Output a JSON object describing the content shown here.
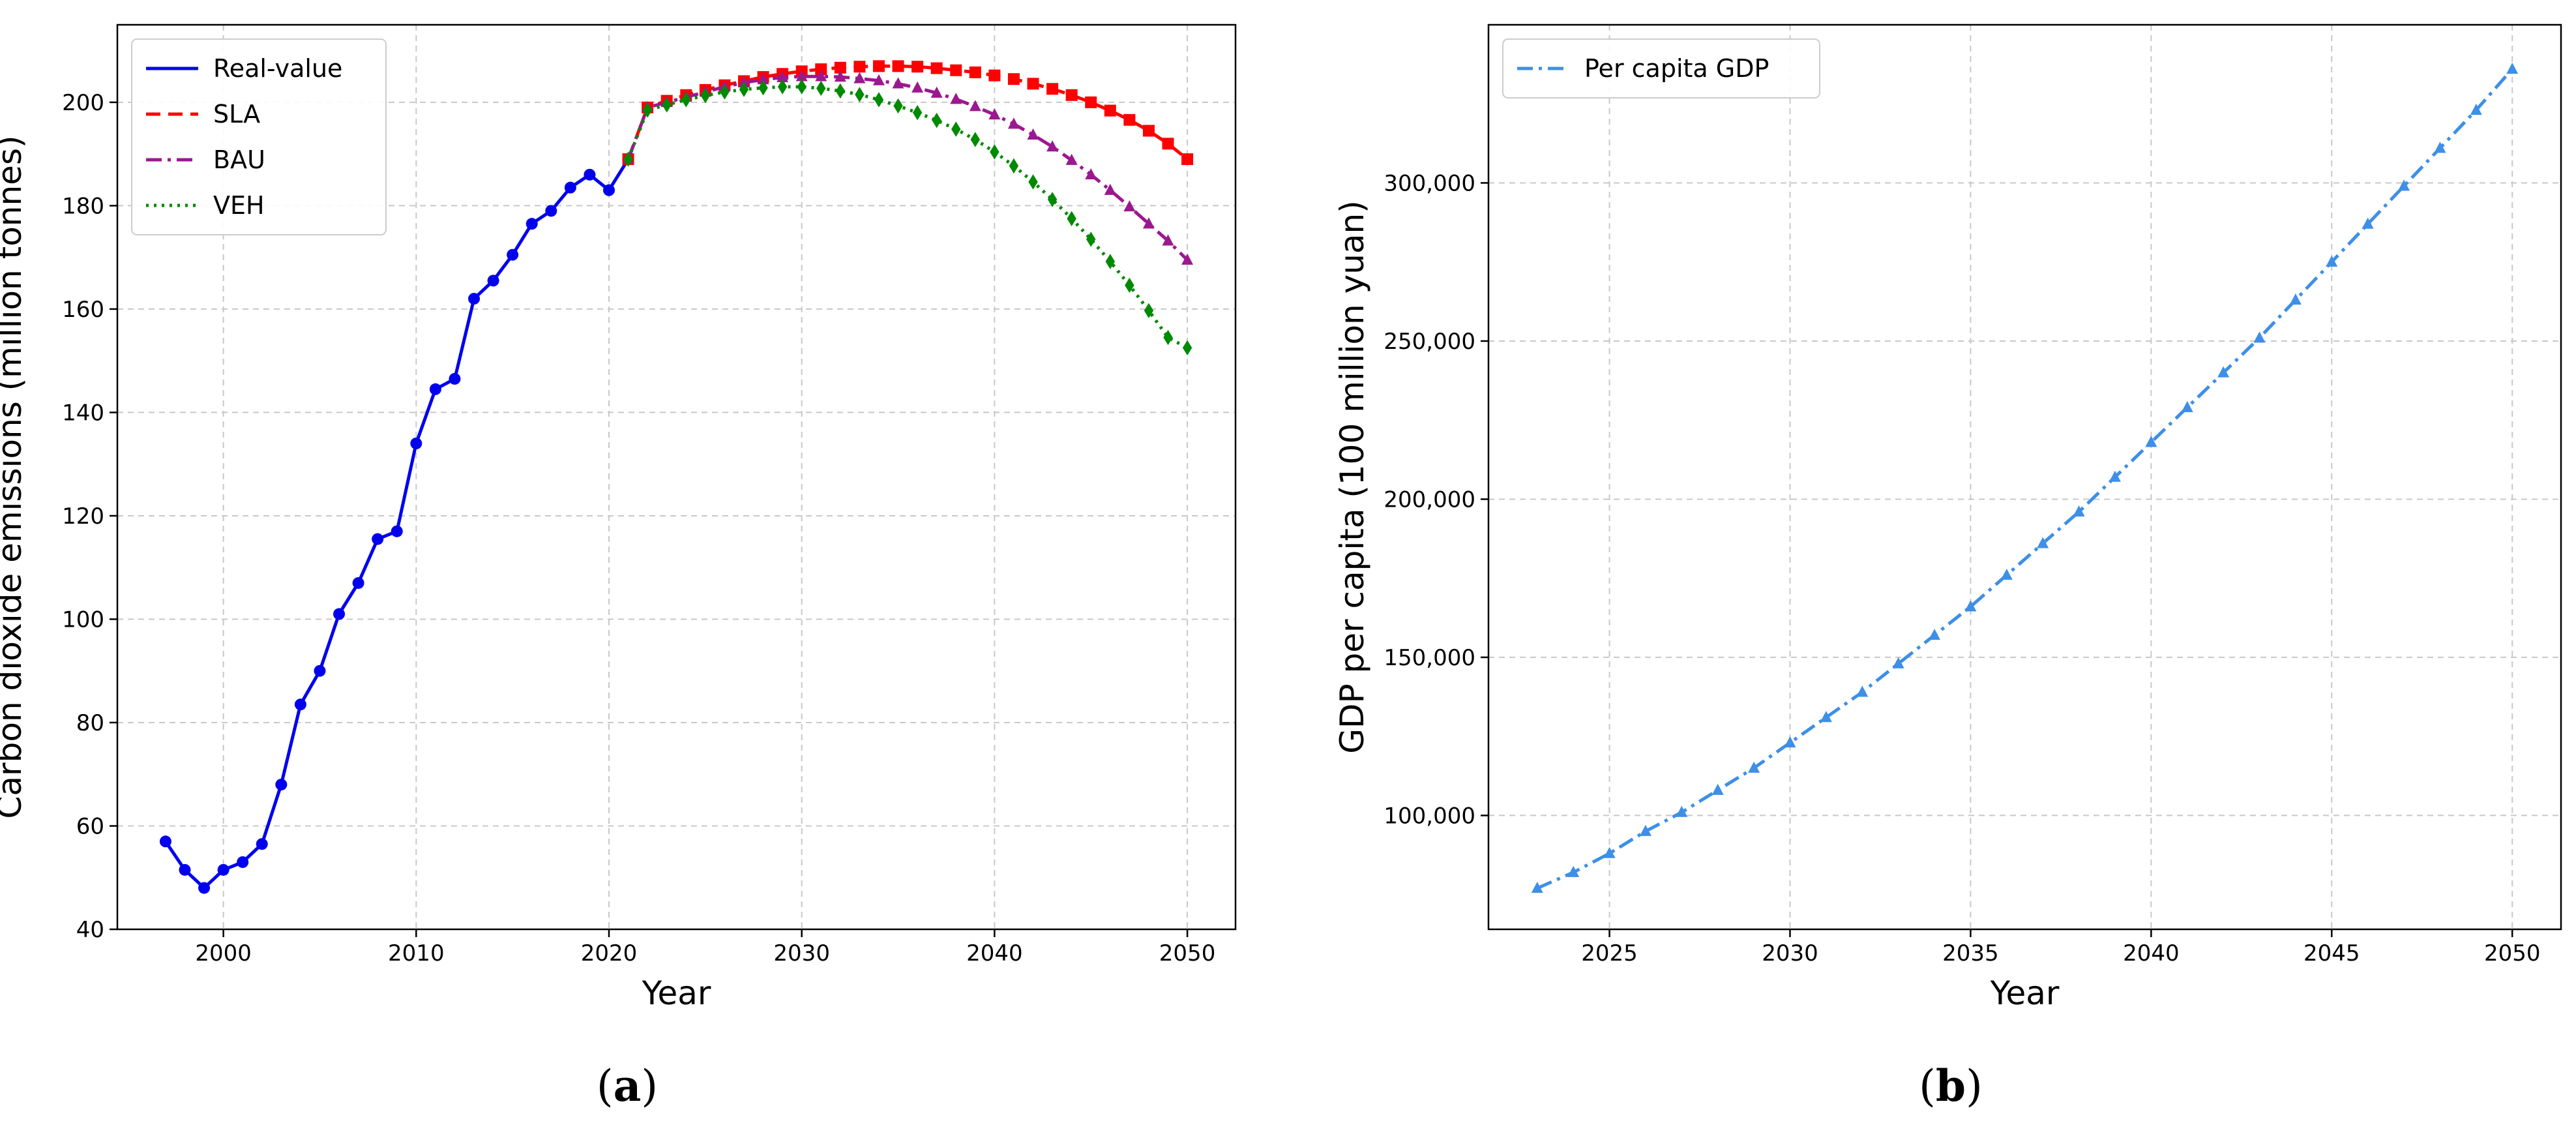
{
  "panels": [
    {
      "label_open": "(",
      "label_letter": "a",
      "label_close": ")"
    },
    {
      "label_open": "(",
      "label_letter": "b",
      "label_close": ")"
    }
  ],
  "chart_data": [
    {
      "type": "line",
      "xlabel": "Year",
      "ylabel": "Carbon dioxide emissions (million tonnes)",
      "xlim": [
        1994.5,
        2052.5
      ],
      "ylim": [
        40,
        215
      ],
      "xticks": [
        2000,
        2010,
        2020,
        2030,
        2040,
        2050
      ],
      "yticks": [
        40,
        60,
        80,
        100,
        120,
        140,
        160,
        180,
        200
      ],
      "grid": true,
      "legend_position": "top-left",
      "series": [
        {
          "name": "Real-value",
          "color": "#0000ee",
          "style": "solid",
          "marker": "circle",
          "x": [
            1997,
            1998,
            1999,
            2000,
            2001,
            2002,
            2003,
            2004,
            2005,
            2006,
            2007,
            2008,
            2009,
            2010,
            2011,
            2012,
            2013,
            2014,
            2015,
            2016,
            2017,
            2018,
            2019,
            2020,
            2021
          ],
          "values": [
            57,
            51.5,
            48,
            51.5,
            53,
            56.5,
            68,
            83.5,
            90,
            101,
            107,
            115.5,
            117,
            134,
            144.5,
            146.5,
            162,
            165.5,
            170.5,
            176.5,
            179,
            183.5,
            186,
            183,
            189
          ]
        },
        {
          "name": "SLA",
          "color": "#ff0000",
          "style": "dashed",
          "marker": "square",
          "x": [
            2021,
            2022,
            2023,
            2024,
            2025,
            2026,
            2027,
            2028,
            2029,
            2030,
            2031,
            2032,
            2033,
            2034,
            2035,
            2036,
            2037,
            2038,
            2039,
            2040,
            2041,
            2042,
            2043,
            2044,
            2045,
            2046,
            2047,
            2048,
            2049,
            2050
          ],
          "values": [
            189,
            199,
            200.3,
            201.4,
            202.4,
            203.3,
            204.1,
            204.9,
            205.5,
            206,
            206.4,
            206.7,
            206.9,
            207,
            207,
            206.9,
            206.6,
            206.2,
            205.8,
            205.2,
            204.5,
            203.6,
            202.6,
            201.4,
            200,
            198.4,
            196.6,
            194.5,
            192,
            189
          ]
        },
        {
          "name": "BAU",
          "color": "#9b1890",
          "style": "dashdot",
          "marker": "triangle",
          "x": [
            2021,
            2022,
            2023,
            2024,
            2025,
            2026,
            2027,
            2028,
            2029,
            2030,
            2031,
            2032,
            2033,
            2034,
            2035,
            2036,
            2037,
            2038,
            2039,
            2040,
            2041,
            2042,
            2043,
            2044,
            2045,
            2046,
            2047,
            2048,
            2049,
            2050
          ],
          "values": [
            189,
            199,
            200,
            201,
            202,
            203,
            203.8,
            204.4,
            204.8,
            205,
            205,
            204.9,
            204.6,
            204.2,
            203.6,
            202.8,
            201.8,
            200.6,
            199.2,
            197.6,
            195.8,
            193.7,
            191.4,
            188.8,
            186,
            183,
            179.8,
            176.5,
            173.2,
            169.5
          ]
        },
        {
          "name": "VEH",
          "color": "#008a00",
          "style": "dotted",
          "marker": "diamond",
          "x": [
            2021,
            2022,
            2023,
            2024,
            2025,
            2026,
            2027,
            2028,
            2029,
            2030,
            2031,
            2032,
            2033,
            2034,
            2035,
            2036,
            2037,
            2038,
            2039,
            2040,
            2041,
            2042,
            2043,
            2044,
            2045,
            2046,
            2047,
            2048,
            2049,
            2050
          ],
          "values": [
            189,
            198.5,
            199.5,
            200.5,
            201.3,
            202,
            202.5,
            202.8,
            203,
            203,
            202.7,
            202.2,
            201.5,
            200.5,
            199.3,
            198,
            196.5,
            194.8,
            192.8,
            190.4,
            187.7,
            184.6,
            181.2,
            177.5,
            173.5,
            169.2,
            164.6,
            159.7,
            154.5,
            152.5
          ]
        }
      ]
    },
    {
      "type": "line",
      "xlabel": "Year",
      "ylabel": "GDP per capita (100 million yuan)",
      "xlim": [
        2021.65,
        2051.35
      ],
      "ylim": [
        64000,
        350000
      ],
      "xticks": [
        2025,
        2030,
        2035,
        2040,
        2045,
        2050
      ],
      "yticks": [
        100000,
        150000,
        200000,
        250000,
        300000
      ],
      "ytick_labels": [
        "100,000",
        "150,000",
        "200,000",
        "250,000",
        "300,000"
      ],
      "grid": true,
      "legend_position": "top-left",
      "series": [
        {
          "name": "Per capita GDP",
          "color": "#3d8fe8",
          "style": "dashdot",
          "marker": "triangle",
          "x": [
            2023,
            2024,
            2025,
            2026,
            2027,
            2028,
            2029,
            2030,
            2031,
            2032,
            2033,
            2034,
            2035,
            2036,
            2037,
            2038,
            2039,
            2040,
            2041,
            2042,
            2043,
            2044,
            2045,
            2046,
            2047,
            2048,
            2049,
            2050
          ],
          "values": [
            77000,
            82000,
            88000,
            95000,
            101000,
            108000,
            115000,
            123000,
            131000,
            139000,
            148000,
            157000,
            166000,
            176000,
            186000,
            196000,
            207000,
            218000,
            229000,
            240000,
            251000,
            263000,
            275000,
            287000,
            299000,
            311000,
            323000,
            336000
          ]
        }
      ]
    }
  ]
}
